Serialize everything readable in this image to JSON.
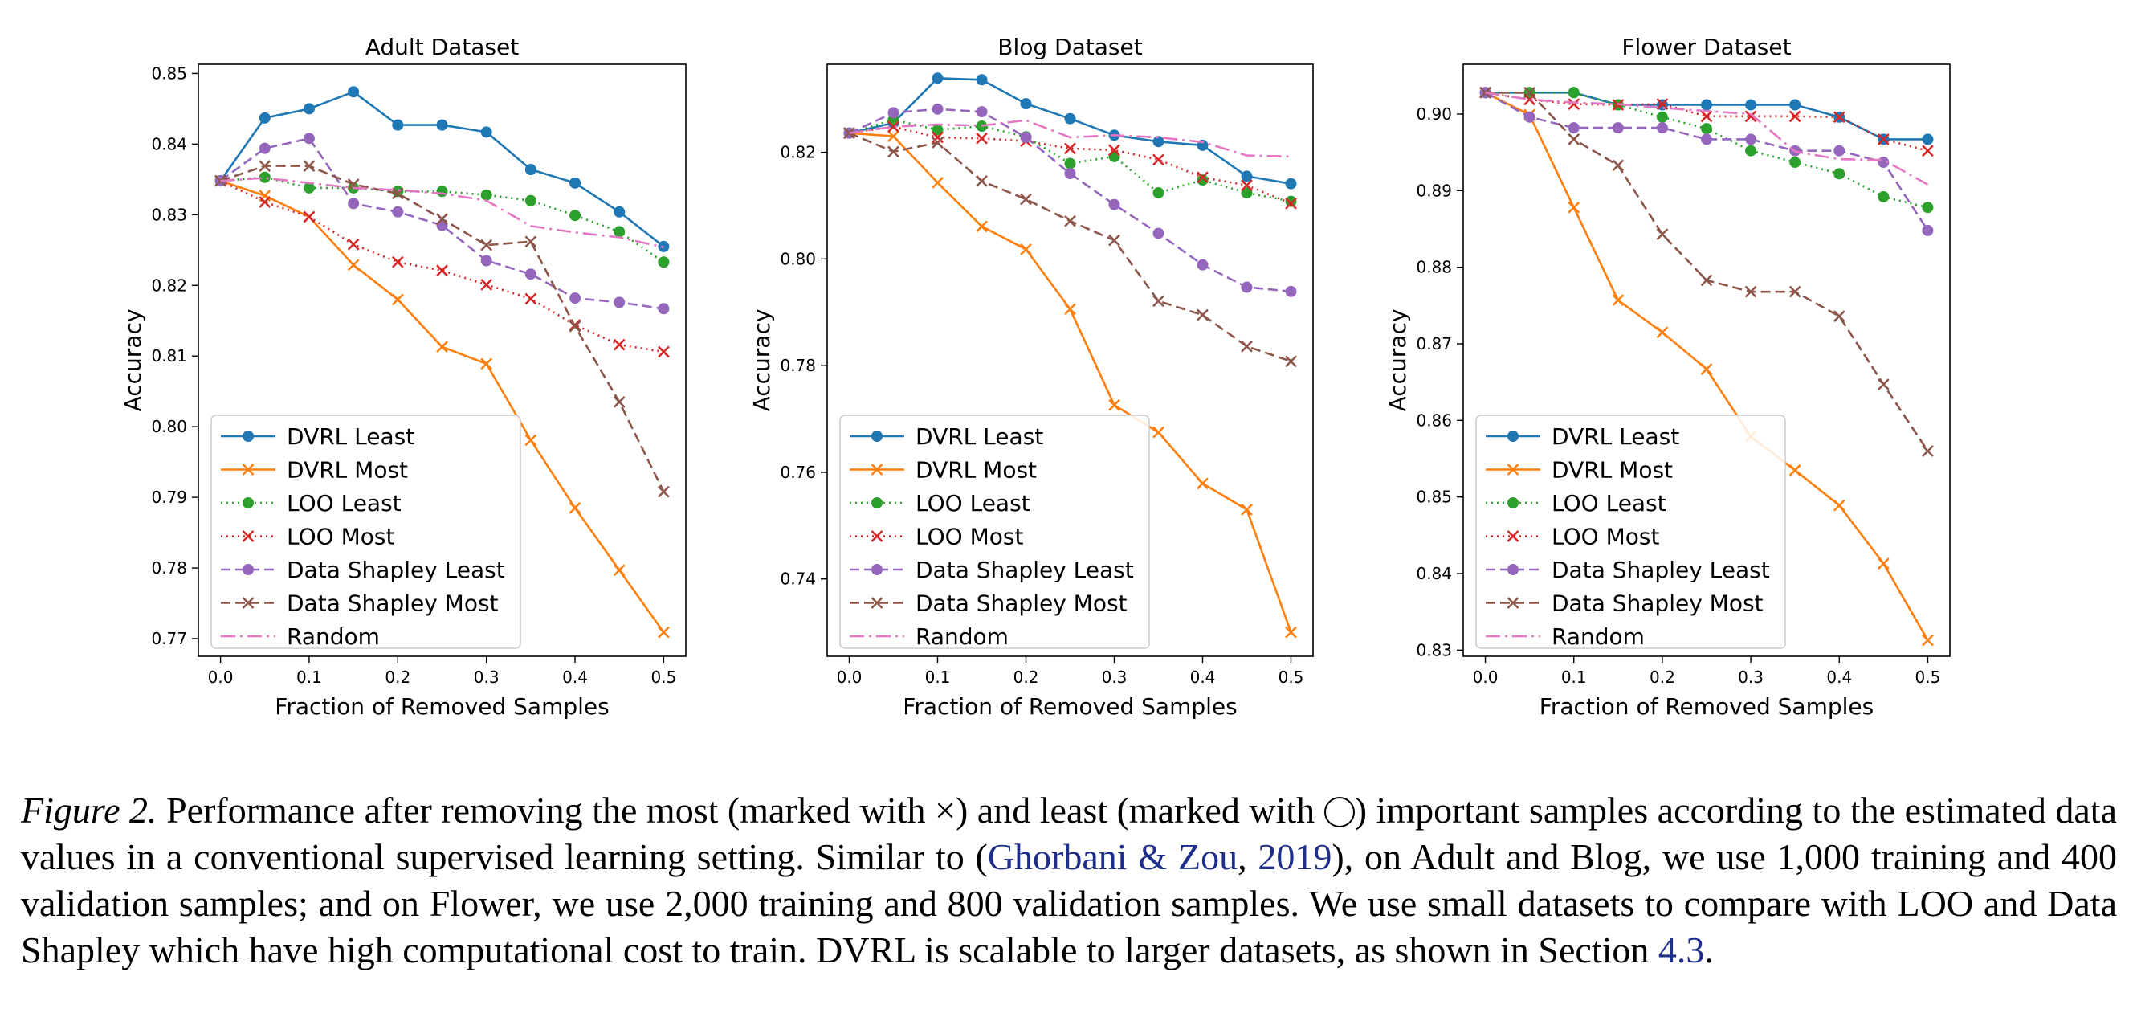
{
  "chart_data": [
    {
      "type": "line",
      "title": "Adult Dataset",
      "xlabel": "Fraction of Removed Samples",
      "ylabel": "Accuracy",
      "xlim": [
        -0.025,
        0.525
      ],
      "ylim": [
        0.7675,
        0.8513
      ],
      "xticks": [
        "0.0",
        "0.1",
        "0.2",
        "0.3",
        "0.4",
        "0.5"
      ],
      "yticks": [
        "0.77",
        "0.78",
        "0.79",
        "0.80",
        "0.81",
        "0.82",
        "0.83",
        "0.84",
        "0.85"
      ],
      "x": [
        0,
        0.05,
        0.1,
        0.15,
        0.2,
        0.25,
        0.3,
        0.35,
        0.4,
        0.45,
        0.5
      ],
      "legend_position": "lower-left",
      "series": [
        {
          "name": "DVRL Least",
          "values": [
            0.8348,
            0.8437,
            0.845,
            0.8474,
            0.8427,
            0.8427,
            0.8417,
            0.8364,
            0.8345,
            0.8304,
            0.8255
          ]
        },
        {
          "name": "DVRL Most",
          "values": [
            0.8348,
            0.8327,
            0.8297,
            0.8229,
            0.818,
            0.8113,
            0.8089,
            0.7981,
            0.7885,
            0.7797,
            0.7709
          ]
        },
        {
          "name": "LOO Least",
          "values": [
            0.8348,
            0.8353,
            0.8338,
            0.8338,
            0.8333,
            0.8333,
            0.8328,
            0.832,
            0.8299,
            0.8276,
            0.8233
          ]
        },
        {
          "name": "LOO Most",
          "values": [
            0.8348,
            0.8318,
            0.8297,
            0.8258,
            0.8233,
            0.8221,
            0.8201,
            0.8181,
            0.8144,
            0.8116,
            0.8106
          ]
        },
        {
          "name": "Data Shapley Least",
          "values": [
            0.8348,
            0.8394,
            0.8408,
            0.8316,
            0.8304,
            0.8285,
            0.8235,
            0.8216,
            0.8182,
            0.8176,
            0.8167
          ]
        },
        {
          "name": "Data Shapley Most",
          "values": [
            0.8348,
            0.8369,
            0.8369,
            0.8343,
            0.833,
            0.8294,
            0.8257,
            0.8262,
            0.8142,
            0.8035,
            0.7908
          ]
        },
        {
          "name": "Random",
          "values": [
            0.8348,
            0.8352,
            0.8345,
            0.8338,
            0.8335,
            0.833,
            0.832,
            0.8284,
            0.8275,
            0.8268,
            0.8254
          ]
        }
      ]
    },
    {
      "type": "line",
      "title": "Blog Dataset",
      "xlabel": "Fraction of Removed Samples",
      "ylabel": "Accuracy",
      "xlim": [
        -0.025,
        0.525
      ],
      "ylim": [
        0.7255,
        0.8365
      ],
      "xticks": [
        "0.0",
        "0.1",
        "0.2",
        "0.3",
        "0.4",
        "0.5"
      ],
      "yticks": [
        "0.74",
        "0.76",
        "0.78",
        "0.80",
        "0.82"
      ],
      "x": [
        0,
        0.05,
        0.1,
        0.15,
        0.2,
        0.25,
        0.3,
        0.35,
        0.4,
        0.45,
        0.5
      ],
      "legend_position": "lower-left",
      "series": [
        {
          "name": "DVRL Least",
          "values": [
            0.8236,
            0.8255,
            0.8339,
            0.8336,
            0.8291,
            0.8263,
            0.8232,
            0.822,
            0.8213,
            0.8155,
            0.8141
          ]
        },
        {
          "name": "DVRL Most",
          "values": [
            0.8236,
            0.823,
            0.8143,
            0.8061,
            0.8018,
            0.7906,
            0.7726,
            0.7675,
            0.7579,
            0.753,
            0.73
          ]
        },
        {
          "name": "LOO Least",
          "values": [
            0.8236,
            0.8261,
            0.8242,
            0.8249,
            0.8229,
            0.8179,
            0.8192,
            0.8124,
            0.8148,
            0.8124,
            0.8108
          ]
        },
        {
          "name": "LOO Most",
          "values": [
            0.8236,
            0.8248,
            0.8228,
            0.8226,
            0.8221,
            0.8207,
            0.8204,
            0.8186,
            0.8153,
            0.8138,
            0.8104
          ]
        },
        {
          "name": "Data Shapley Least",
          "values": [
            0.8236,
            0.8274,
            0.8281,
            0.8276,
            0.8228,
            0.816,
            0.8102,
            0.8048,
            0.7989,
            0.7947,
            0.7939
          ]
        },
        {
          "name": "Data Shapley Most",
          "values": [
            0.8236,
            0.8201,
            0.8218,
            0.8146,
            0.8112,
            0.8071,
            0.8035,
            0.7921,
            0.7895,
            0.7836,
            0.7808
          ]
        },
        {
          "name": "Random",
          "values": [
            0.8236,
            0.8248,
            0.8252,
            0.825,
            0.826,
            0.8228,
            0.8232,
            0.8228,
            0.8219,
            0.8194,
            0.8192
          ]
        }
      ]
    },
    {
      "type": "line",
      "title": "Flower Dataset",
      "xlabel": "Fraction of Removed Samples",
      "ylabel": "Accuracy",
      "xlim": [
        -0.025,
        0.525
      ],
      "ylim": [
        0.8292,
        0.9065
      ],
      "xticks": [
        "0.0",
        "0.1",
        "0.2",
        "0.3",
        "0.4",
        "0.5"
      ],
      "yticks": [
        "0.83",
        "0.84",
        "0.85",
        "0.86",
        "0.87",
        "0.88",
        "0.89",
        "0.90"
      ],
      "x": [
        0,
        0.05,
        0.1,
        0.15,
        0.2,
        0.25,
        0.3,
        0.35,
        0.4,
        0.45,
        0.5
      ],
      "legend_position": "lower-left",
      "series": [
        {
          "name": "DVRL Least",
          "values": [
            0.9028,
            0.9028,
            0.9028,
            0.9012,
            0.9012,
            0.9012,
            0.9012,
            0.9012,
            0.8996,
            0.8967,
            0.8967
          ]
        },
        {
          "name": "DVRL Most",
          "values": [
            0.9028,
            0.8999,
            0.8878,
            0.8757,
            0.8715,
            0.8667,
            0.8579,
            0.8535,
            0.8489,
            0.8413,
            0.8313
          ]
        },
        {
          "name": "LOO Least",
          "values": [
            0.9028,
            0.9028,
            0.9028,
            0.9012,
            0.8996,
            0.8981,
            0.8952,
            0.8937,
            0.8922,
            0.8892,
            0.8878
          ]
        },
        {
          "name": "LOO Most",
          "values": [
            0.9028,
            0.9019,
            0.9013,
            0.9012,
            0.9013,
            0.8997,
            0.8997,
            0.8997,
            0.8996,
            0.8967,
            0.8952
          ]
        },
        {
          "name": "Data Shapley Least",
          "values": [
            0.9028,
            0.8996,
            0.8982,
            0.8982,
            0.8982,
            0.8967,
            0.8967,
            0.8952,
            0.8952,
            0.8937,
            0.8848
          ]
        },
        {
          "name": "Data Shapley Most",
          "values": [
            0.9028,
            0.9028,
            0.8967,
            0.8933,
            0.8843,
            0.8783,
            0.8768,
            0.8768,
            0.8736,
            0.8647,
            0.856
          ]
        },
        {
          "name": "Random",
          "values": [
            0.9028,
            0.9019,
            0.9015,
            0.9013,
            0.9008,
            0.9004,
            0.9,
            0.8951,
            0.8941,
            0.894,
            0.8908
          ]
        }
      ]
    }
  ],
  "series_styles": [
    {
      "color": "#1f77b4",
      "dash": "",
      "marker": "circle"
    },
    {
      "color": "#ff7f0e",
      "dash": "",
      "marker": "x"
    },
    {
      "color": "#2ca02c",
      "dash": "2 5",
      "marker": "circle"
    },
    {
      "color": "#d62728",
      "dash": "2 5",
      "marker": "x"
    },
    {
      "color": "#9467bd",
      "dash": "12 6",
      "marker": "circle"
    },
    {
      "color": "#8c564b",
      "dash": "12 6",
      "marker": "x"
    },
    {
      "color": "#e377c2",
      "dash": "18 6 3 6",
      "marker": "none"
    }
  ],
  "caption": {
    "label": "Figure 2.",
    "part1": " Performance after removing the most (marked with ×) and least (marked with ",
    "part2": ") important samples according to the estimated data values in a conventional supervised learning setting. Similar to (",
    "cite_author": "Ghorbani & Zou",
    "cite_sep": ", ",
    "cite_year": "2019",
    "part3": "), on Adult and Blog, we use 1,000 training and 400 validation samples; and on Flower, we use 2,000 training and 800 validation samples. We use small datasets to compare with LOO and Data Shapley which have high computational cost to train. DVRL is scalable to larger datasets, as shown in Section ",
    "section_ref": "4.3",
    "part4": "."
  }
}
